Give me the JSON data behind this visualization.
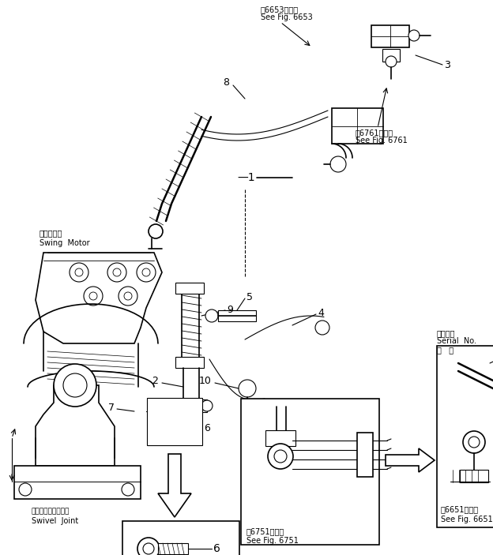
{
  "bg_color": "#ffffff",
  "lc": "#000000",
  "fig_w": 6.24,
  "fig_h": 7.03,
  "dpi": 100,
  "labels": {
    "swing_motor_jp": "旋回モータ",
    "swing_motor_en": "Swing  Motor",
    "swivel_jp": "スイベルジョイント",
    "swivel_en": "Swivel  Joint",
    "serial1_jp": "適用号機",
    "serial1_en": "Serial  No.",
    "serial1_dot": "・   ～",
    "serial2_jp": "適用号機",
    "serial2_en": "Serial  No.",
    "serial2_dot": "・   ～",
    "fig6653_jp": "第6653図参照",
    "fig6653_en": "See Fig. 6653",
    "fig6761_jp": "第6761図参照",
    "fig6761_en": "See Fig. 6761",
    "fig6751_jp": "第6751図参照",
    "fig6751_en": "See Fig. 6751",
    "fig6651_jp": "第6651図参照",
    "fig6651_en": "See Fig. 6651"
  }
}
